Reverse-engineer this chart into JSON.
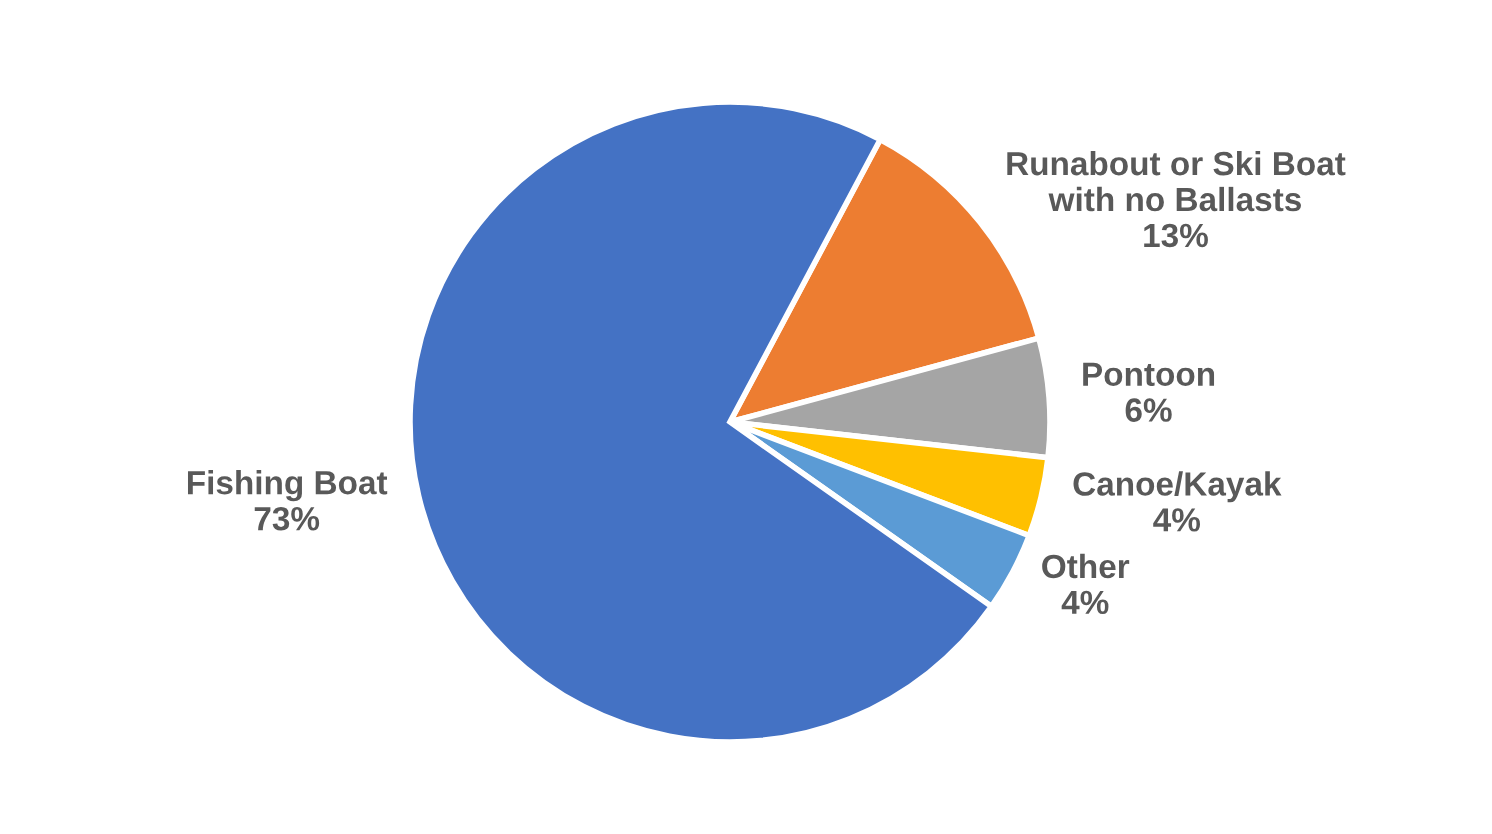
{
  "chart_data": {
    "type": "pie",
    "categories": [
      "Runabout or Ski Boat\nwith no Ballasts",
      "Pontoon",
      "Canoe/Kayak",
      "Other",
      "Fishing Boat"
    ],
    "values": [
      13,
      6,
      4,
      4,
      73
    ],
    "colors": [
      "#ed7d31",
      "#a5a5a5",
      "#ffc000",
      "#5b9bd5",
      "#4472c4"
    ],
    "value_labels": [
      "13%",
      "6%",
      "4%",
      "4%",
      "73%"
    ],
    "legend": false
  }
}
